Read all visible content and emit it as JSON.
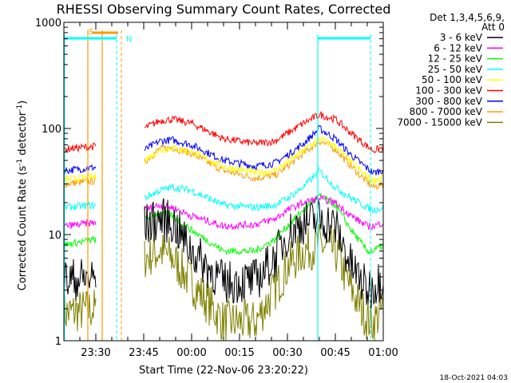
{
  "chart_data": {
    "type": "line",
    "title": "RHESSI Observing Summary Count Rates, Corrected",
    "xlabel": "Start Time (22-Nov-06 23:20:22)",
    "ylabel": "Corrected Count Rate (s",
    "ylabel_sup": "-1",
    "ylabel_mid": " detector",
    "ylabel_sup2": "-1",
    "ylabel_end": ")",
    "yscale": "log",
    "ylim": [
      1,
      1000
    ],
    "ytick_labels": [
      "1",
      "10",
      "100",
      "1000"
    ],
    "ytick_values": [
      1,
      10,
      100,
      1000
    ],
    "xlim_minutes": [
      0,
      100
    ],
    "xtick_labels": [
      "23:30",
      "23:45",
      "00:00",
      "00:15",
      "00:30",
      "00:45",
      "01:00"
    ],
    "xtick_minutes": [
      10,
      25,
      40,
      55,
      70,
      85,
      100
    ],
    "legend_header": [
      "Det 1,3,4,5,6,9,",
      "Att 0"
    ],
    "legend_position": "top-right, outside plot",
    "series": [
      {
        "name": "3 - 6 keV",
        "color": "#000000",
        "x": [
          0,
          10,
          18,
          25,
          30,
          34,
          40,
          50,
          60,
          66,
          70,
          75,
          80,
          85,
          90,
          95,
          97,
          100
        ],
        "y": [
          3.7,
          3.9,
          null,
          12,
          14,
          13,
          7,
          3.5,
          3.7,
          6,
          10,
          13,
          14,
          12,
          5,
          3,
          3.3,
          4
        ]
      },
      {
        "name": "6 - 12 keV",
        "color": "#ff00ff",
        "x": [
          0,
          10,
          18,
          25,
          30,
          34,
          40,
          50,
          60,
          66,
          70,
          75,
          80,
          85,
          90,
          95,
          97,
          100
        ],
        "y": [
          12,
          13,
          null,
          17,
          19,
          18,
          15,
          12,
          12.5,
          14,
          17,
          20,
          22,
          20,
          15,
          12,
          12,
          13
        ]
      },
      {
        "name": "12 - 25 keV",
        "color": "#00ff00",
        "x": [
          0,
          10,
          18,
          25,
          30,
          34,
          40,
          50,
          60,
          66,
          70,
          75,
          80,
          85,
          90,
          95,
          97,
          100
        ],
        "y": [
          8,
          9,
          null,
          14,
          16,
          15,
          11,
          7,
          7,
          9,
          12,
          17,
          23,
          19,
          11,
          7,
          7,
          8
        ]
      },
      {
        "name": "25 - 50 keV",
        "color": "#00ffff",
        "x": [
          0,
          10,
          18,
          25,
          30,
          34,
          40,
          50,
          60,
          66,
          70,
          75,
          80,
          85,
          90,
          95,
          97,
          100
        ],
        "y": [
          18,
          19,
          null,
          22,
          26,
          28,
          26,
          19,
          18,
          19,
          22,
          28,
          40,
          28,
          22,
          18,
          17,
          18
        ]
      },
      {
        "name": "50 - 100 keV",
        "color": "#ffff00",
        "x": [
          0,
          10,
          18,
          25,
          30,
          34,
          40,
          50,
          60,
          66,
          70,
          75,
          80,
          85,
          90,
          95,
          97,
          100
        ],
        "y": [
          33,
          35,
          null,
          50,
          62,
          66,
          60,
          44,
          38,
          40,
          48,
          62,
          80,
          68,
          48,
          35,
          32,
          36
        ]
      },
      {
        "name": "100 - 300 keV",
        "color": "#ff0000",
        "x": [
          0,
          10,
          18,
          25,
          30,
          34,
          40,
          50,
          60,
          66,
          70,
          75,
          80,
          85,
          90,
          95,
          97,
          100
        ],
        "y": [
          64,
          68,
          null,
          100,
          118,
          122,
          112,
          80,
          72,
          76,
          90,
          112,
          135,
          122,
          90,
          68,
          62,
          66
        ]
      },
      {
        "name": "300 - 800 keV",
        "color": "#0000ff",
        "x": [
          0,
          10,
          18,
          25,
          30,
          34,
          40,
          50,
          60,
          66,
          70,
          75,
          80,
          85,
          90,
          95,
          97,
          100
        ],
        "y": [
          40,
          43,
          null,
          62,
          76,
          78,
          70,
          50,
          44,
          47,
          56,
          72,
          100,
          80,
          56,
          42,
          38,
          41
        ]
      },
      {
        "name": "800 - 7000 keV",
        "color": "#ff9900",
        "x": [
          0,
          10,
          18,
          25,
          30,
          34,
          40,
          50,
          60,
          66,
          70,
          75,
          80,
          85,
          90,
          95,
          97,
          100
        ],
        "y": [
          30,
          32,
          null,
          48,
          64,
          66,
          58,
          40,
          34,
          36,
          44,
          58,
          76,
          64,
          44,
          31,
          28,
          30
        ]
      },
      {
        "name": "7000 - 15000 keV",
        "color": "#808000",
        "x": [
          0,
          10,
          18,
          25,
          30,
          34,
          40,
          50,
          60,
          66,
          70,
          75,
          80,
          85,
          90,
          95,
          97,
          100
        ],
        "y": [
          1.8,
          2,
          null,
          6,
          7,
          6,
          3.5,
          1.5,
          1.5,
          3,
          5,
          7,
          8,
          7,
          3,
          1.6,
          1.5,
          2
        ]
      }
    ],
    "markers": [
      {
        "label": "S",
        "color": "#ff9900"
      },
      {
        "label": "N",
        "color": "#00ffff"
      }
    ],
    "footer_date": "18-Oct-2021 04:03"
  }
}
